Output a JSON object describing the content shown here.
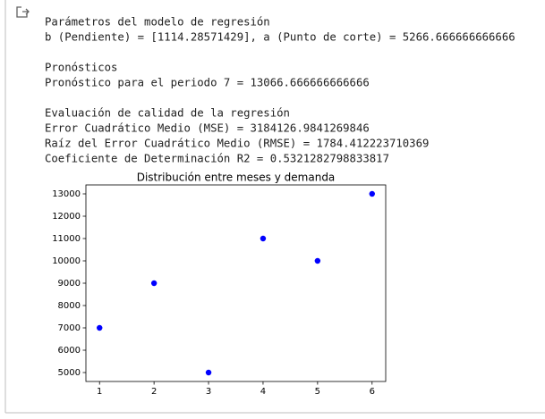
{
  "output_blocks": [
    [
      "Parámetros del modelo de regresión",
      "b (Pendiente) = [1114.28571429], a (Punto de corte) = 5266.666666666666"
    ],
    [
      "Pronósticos",
      "Pronóstico para el periodo 7 = 13066.666666666666"
    ],
    [
      "Evaluación de calidad de la regresión",
      "Error Cuadrático Medio (MSE) = 3184126.9841269846",
      "Raíz del Error Cuadrático Medio (RMSE) = 1784.412223710369",
      "Coeficiente de Determinación R2 = 0.5321282798833817"
    ]
  ],
  "chart_data": {
    "type": "scatter",
    "title": "Distribución entre meses y demanda",
    "x": [
      1,
      2,
      3,
      4,
      5,
      6
    ],
    "values": [
      7000,
      9000,
      5000,
      11000,
      10000,
      13000
    ],
    "color": "#0000ff",
    "xlim": [
      0.75,
      6.25
    ],
    "xticks": [
      1,
      2,
      3,
      4,
      5,
      6
    ],
    "ylim": [
      4600,
      13400
    ],
    "yticks": [
      5000,
      6000,
      7000,
      8000,
      9000,
      10000,
      11000,
      12000,
      13000
    ]
  }
}
